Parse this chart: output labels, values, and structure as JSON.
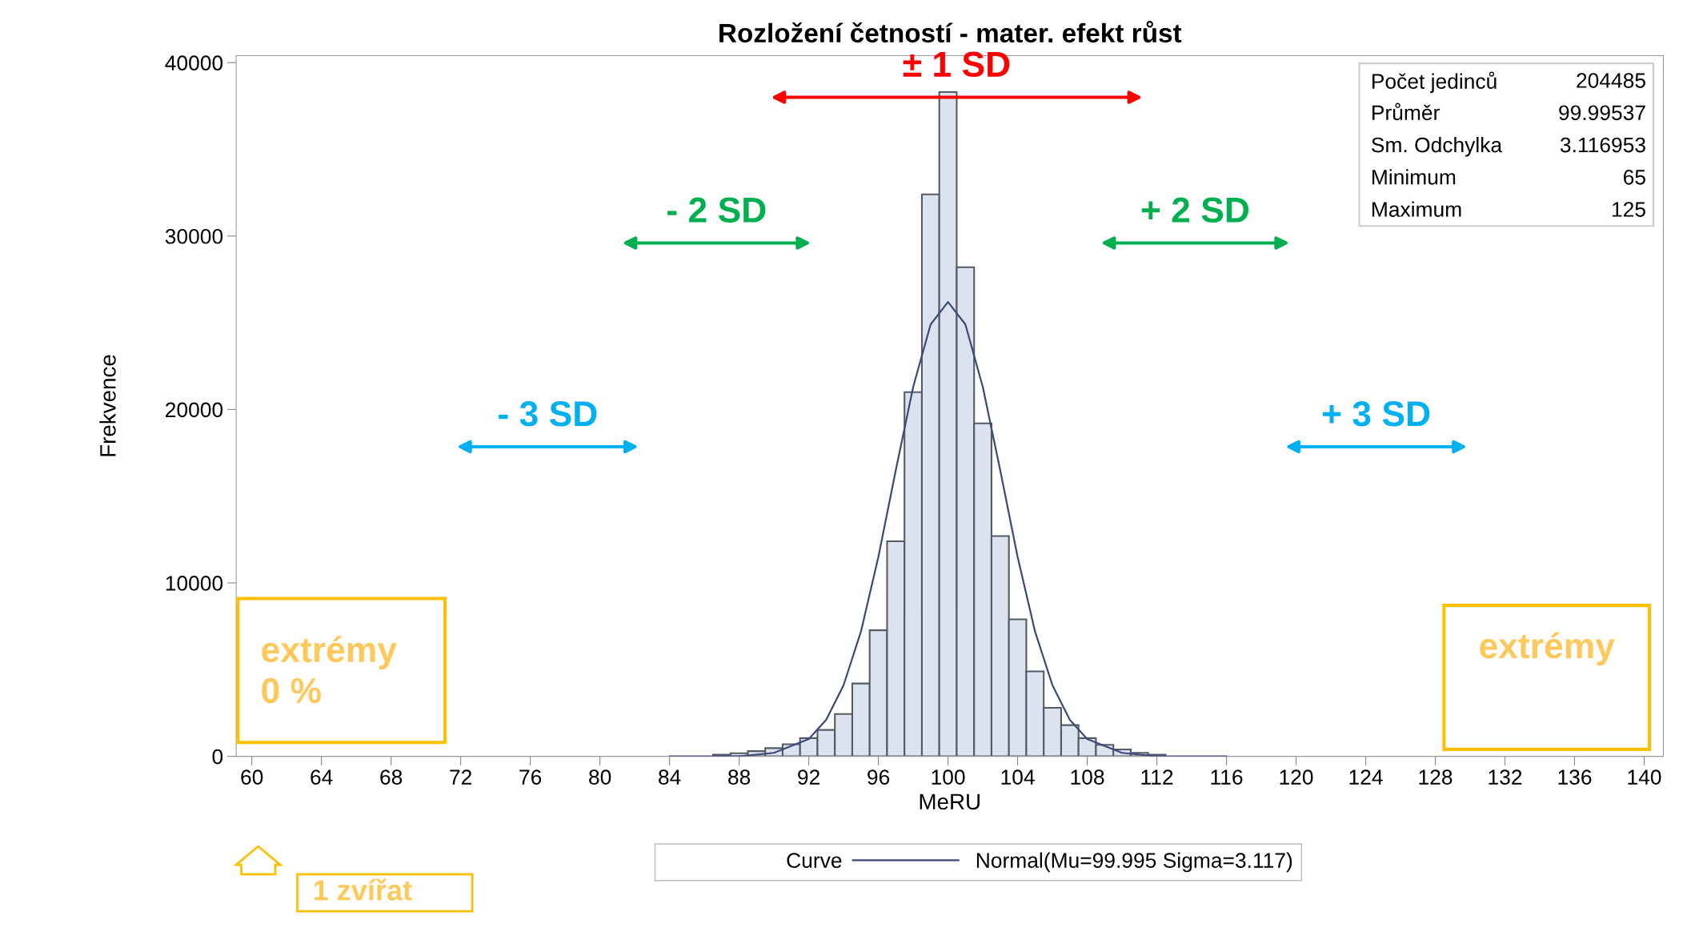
{
  "chart_data": {
    "type": "histogram",
    "title": "Rozložení četností - mater. efekt růst",
    "xlabel": "MeRU",
    "ylabel": "Frekvence",
    "legend_title": "Curve",
    "legend": "bottom",
    "grid": false,
    "bins": [
      86.5,
      87.5,
      88.5,
      89.5,
      90.5,
      91.5,
      92.5,
      93.5,
      94.5,
      95.5,
      96.5,
      97.5,
      98.5,
      99.5,
      100.5,
      101.5,
      102.5,
      103.5,
      104.5,
      105.5,
      106.5,
      107.5,
      108.5,
      109.5,
      110.5,
      111.5,
      112.5
    ],
    "values": [
      100,
      180,
      300,
      470,
      700,
      1050,
      1520,
      2440,
      4200,
      7270,
      12400,
      21000,
      32400,
      38300,
      28200,
      19200,
      12700,
      7900,
      4900,
      2800,
      1800,
      1050,
      660,
      400,
      200,
      100
    ],
    "color": "#dde3ee",
    "series": [
      {
        "type": "line",
        "name": "Normal(Mu=99.995 Sigma=3.117)",
        "color": "#3c4a78",
        "x": [
          84,
          86,
          88,
          90,
          92,
          93,
          94,
          95,
          96,
          97,
          98,
          99,
          100,
          101,
          102,
          103,
          104,
          105,
          106,
          107,
          108,
          110,
          112,
          114,
          116
        ],
        "values": [
          0,
          0,
          0,
          200,
          1000,
          2100,
          4100,
          7200,
          11500,
          16500,
          21300,
          24900,
          26200,
          24900,
          21300,
          16500,
          11500,
          7200,
          4100,
          2100,
          1000,
          200,
          0,
          0,
          0
        ]
      }
    ],
    "xlim": [
      59.1,
      141.1
    ],
    "xticks": [
      60,
      64,
      68,
      72,
      76,
      80,
      84,
      88,
      92,
      96,
      100,
      104,
      108,
      112,
      116,
      120,
      124,
      128,
      132,
      136,
      140
    ],
    "ylim": [
      0,
      40400
    ],
    "yticks": [
      0,
      10000,
      20000,
      30000,
      40000
    ],
    "annotations": [
      "± 1 SD",
      "- 2 SD",
      "+ 2 SD",
      "- 3 SD",
      "+ 3 SD",
      "Počet jedinců",
      "204485",
      "Průměr",
      "99.99537",
      "Sm. Odchylka",
      "3.116953",
      "Minimum",
      "65",
      "Maximum",
      "125",
      "extrémy\n0 %",
      "extrémy",
      "1 zvířat"
    ]
  }
}
